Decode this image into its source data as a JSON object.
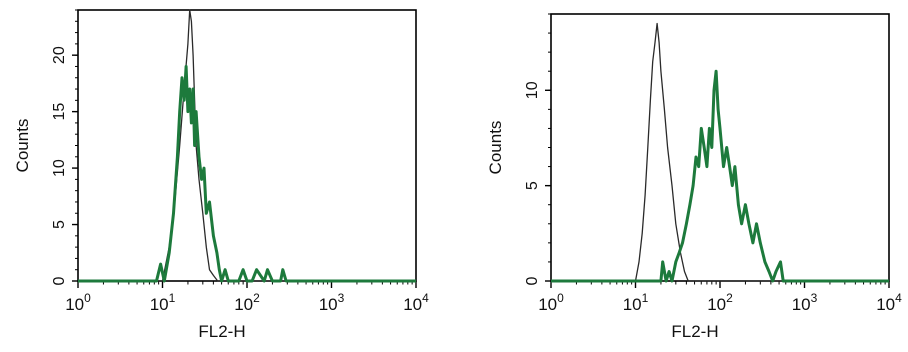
{
  "colors": {
    "control": "#2a2a2a",
    "stained": "#1d7a3c",
    "axis": "#000000"
  },
  "chart_data": [
    {
      "type": "line",
      "title": "",
      "xlabel": "FL2-H",
      "ylabel": "Counts",
      "xscale": "log",
      "xlim": [
        1,
        10000
      ],
      "ylim": [
        0,
        24
      ],
      "xticks": [
        "10^0",
        "10^1",
        "10^2",
        "10^3",
        "10^4"
      ],
      "yticks": [
        0,
        5,
        10,
        15,
        20
      ],
      "grid": false,
      "series": [
        {
          "name": "",
          "color": "#2a2a2a",
          "x": [
            1,
            10,
            12,
            14,
            16,
            18,
            20,
            21,
            22,
            23,
            24,
            25,
            27,
            30,
            33,
            36,
            40,
            45,
            50,
            10000
          ],
          "y": [
            0,
            0,
            3,
            7,
            12,
            17,
            21,
            24,
            23,
            20,
            16,
            12,
            9,
            6,
            3,
            1,
            0.5,
            0,
            0,
            0
          ]
        },
        {
          "name": "",
          "color": "#1d7a3c",
          "x": [
            1,
            8.5,
            9.5,
            10.5,
            12,
            13.5,
            15,
            16,
            17,
            18,
            19,
            20,
            21,
            22,
            23,
            24,
            25,
            27,
            29,
            31,
            33,
            36,
            40,
            44,
            47,
            50,
            55,
            60,
            70,
            80,
            90,
            100,
            115,
            130,
            160,
            175,
            200,
            250,
            265,
            290,
            10000
          ],
          "y": [
            0,
            0,
            1.5,
            0,
            2.5,
            6,
            11,
            15,
            18,
            16,
            19,
            15,
            17,
            14,
            17,
            12,
            15,
            11,
            9,
            10,
            6,
            7,
            4,
            2.5,
            1,
            0,
            1,
            0,
            0,
            0,
            1,
            0,
            0,
            1,
            0,
            1,
            0,
            0,
            1,
            0,
            0
          ]
        }
      ]
    },
    {
      "type": "line",
      "title": "",
      "xlabel": "FL2-H",
      "ylabel": "Counts",
      "xscale": "log",
      "xlim": [
        1,
        10000
      ],
      "ylim": [
        0,
        14
      ],
      "xticks": [
        "10^0",
        "10^1",
        "10^2",
        "10^3",
        "10^4"
      ],
      "yticks": [
        0,
        5,
        10
      ],
      "grid": false,
      "series": [
        {
          "name": "",
          "color": "#2a2a2a",
          "x": [
            1,
            10,
            11,
            12,
            13,
            14,
            15,
            16,
            17,
            18,
            19,
            20,
            22,
            24,
            27,
            30,
            34,
            38,
            42,
            10000
          ],
          "y": [
            0,
            0,
            1,
            2.5,
            4.5,
            7,
            9.5,
            11.5,
            12.5,
            13.5,
            12.5,
            11,
            9,
            7,
            5,
            3,
            1.5,
            0.5,
            0,
            0
          ]
        },
        {
          "name": "",
          "color": "#1d7a3c",
          "x": [
            1,
            20,
            21,
            23,
            25,
            27,
            30,
            33,
            36,
            40,
            44,
            48,
            52,
            56,
            60,
            65,
            70,
            75,
            80,
            85,
            90,
            95,
            100,
            110,
            120,
            130,
            140,
            150,
            165,
            180,
            200,
            220,
            245,
            270,
            300,
            340,
            380,
            420,
            460,
            520,
            560,
            600,
            10000
          ],
          "y": [
            0,
            0,
            1,
            0,
            0.5,
            0,
            1,
            1.5,
            2,
            3,
            4,
            5,
            6.5,
            6,
            8,
            7,
            6,
            8,
            7,
            10,
            11,
            9,
            8,
            6,
            7,
            6,
            5,
            6,
            4,
            3,
            4,
            3,
            2,
            3,
            2,
            1,
            0.5,
            0,
            0.5,
            1,
            0,
            0,
            0
          ]
        }
      ]
    }
  ]
}
